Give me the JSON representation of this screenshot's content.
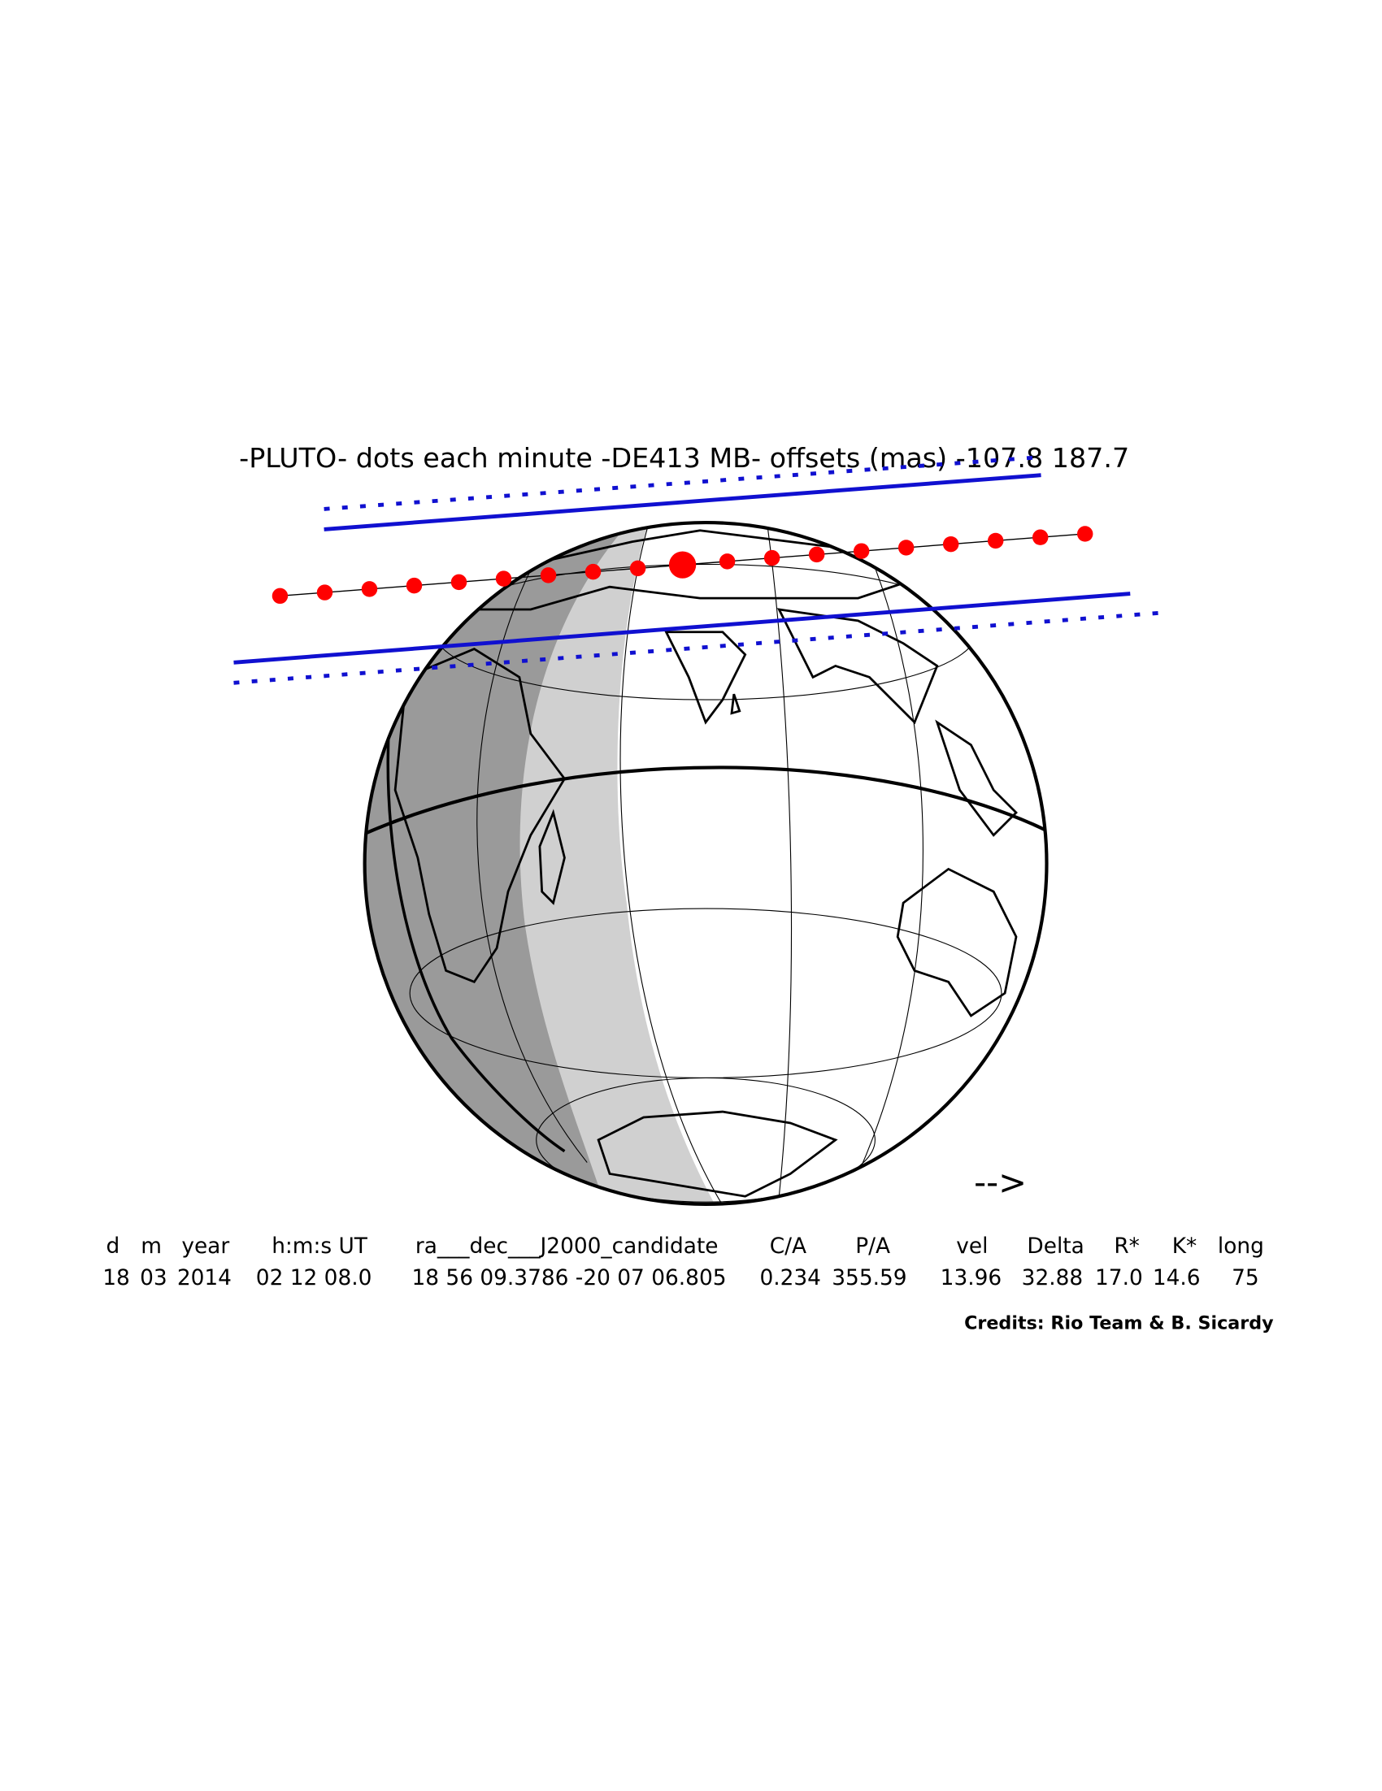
{
  "title": "-PLUTO- dots each minute -DE413 MB- offsets (mas) -107.8  187.7",
  "direction": "-->",
  "table": {
    "headers": [
      "d",
      "m",
      "year",
      "h:m:s UT",
      "ra___dec___J2000_candidate",
      "C/A",
      "P/A",
      "vel",
      "Delta",
      "R*",
      "K*",
      "long"
    ],
    "rows": [
      [
        "18",
        "03",
        "2014",
        "02 12 08.0",
        "18 56 09.3786 -20 07 06.805",
        "0.234",
        "355.59",
        "13.96",
        "32.88",
        "17.0",
        "14.6",
        "75"
      ]
    ]
  },
  "credits": "Credits: Rio Team & B. Sicardy"
}
